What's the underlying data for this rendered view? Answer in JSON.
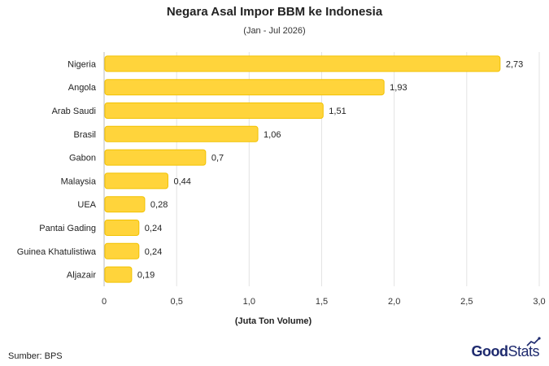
{
  "chart_data": {
    "type": "bar",
    "orientation": "horizontal",
    "title": "Negara Asal Impor BBM ke Indonesia",
    "subtitle": "(Jan - Jul 2026)",
    "xlabel": "(Juta Ton Volume)",
    "ylabel": "",
    "categories": [
      "Nigeria",
      "Angola",
      "Arab Saudi",
      "Brasil",
      "Gabon",
      "Malaysia",
      "UEA",
      "Pantai Gading",
      "Guinea Khatulistiwa",
      "Aljazair"
    ],
    "values": [
      2.73,
      1.93,
      1.51,
      1.06,
      0.7,
      0.44,
      0.28,
      0.24,
      0.24,
      0.19
    ],
    "value_labels": [
      "2,73",
      "1,93",
      "1,51",
      "1,06",
      "0,7",
      "0,44",
      "0,28",
      "0,24",
      "0,24",
      "0,19"
    ],
    "xlim": [
      0,
      3.0
    ],
    "xticks": [
      0,
      0.5,
      1.0,
      1.5,
      2.0,
      2.5,
      3.0
    ],
    "xtick_labels": [
      "0",
      "0,5",
      "1,0",
      "1,5",
      "2,0",
      "2,5",
      "3,0"
    ],
    "grid": "vertical",
    "bar_color": "#FFD43B",
    "bar_edge_color": "#F2C200"
  },
  "footer": {
    "source": "Sumber: BPS",
    "brand_good": "Good",
    "brand_stats": "Stats"
  }
}
